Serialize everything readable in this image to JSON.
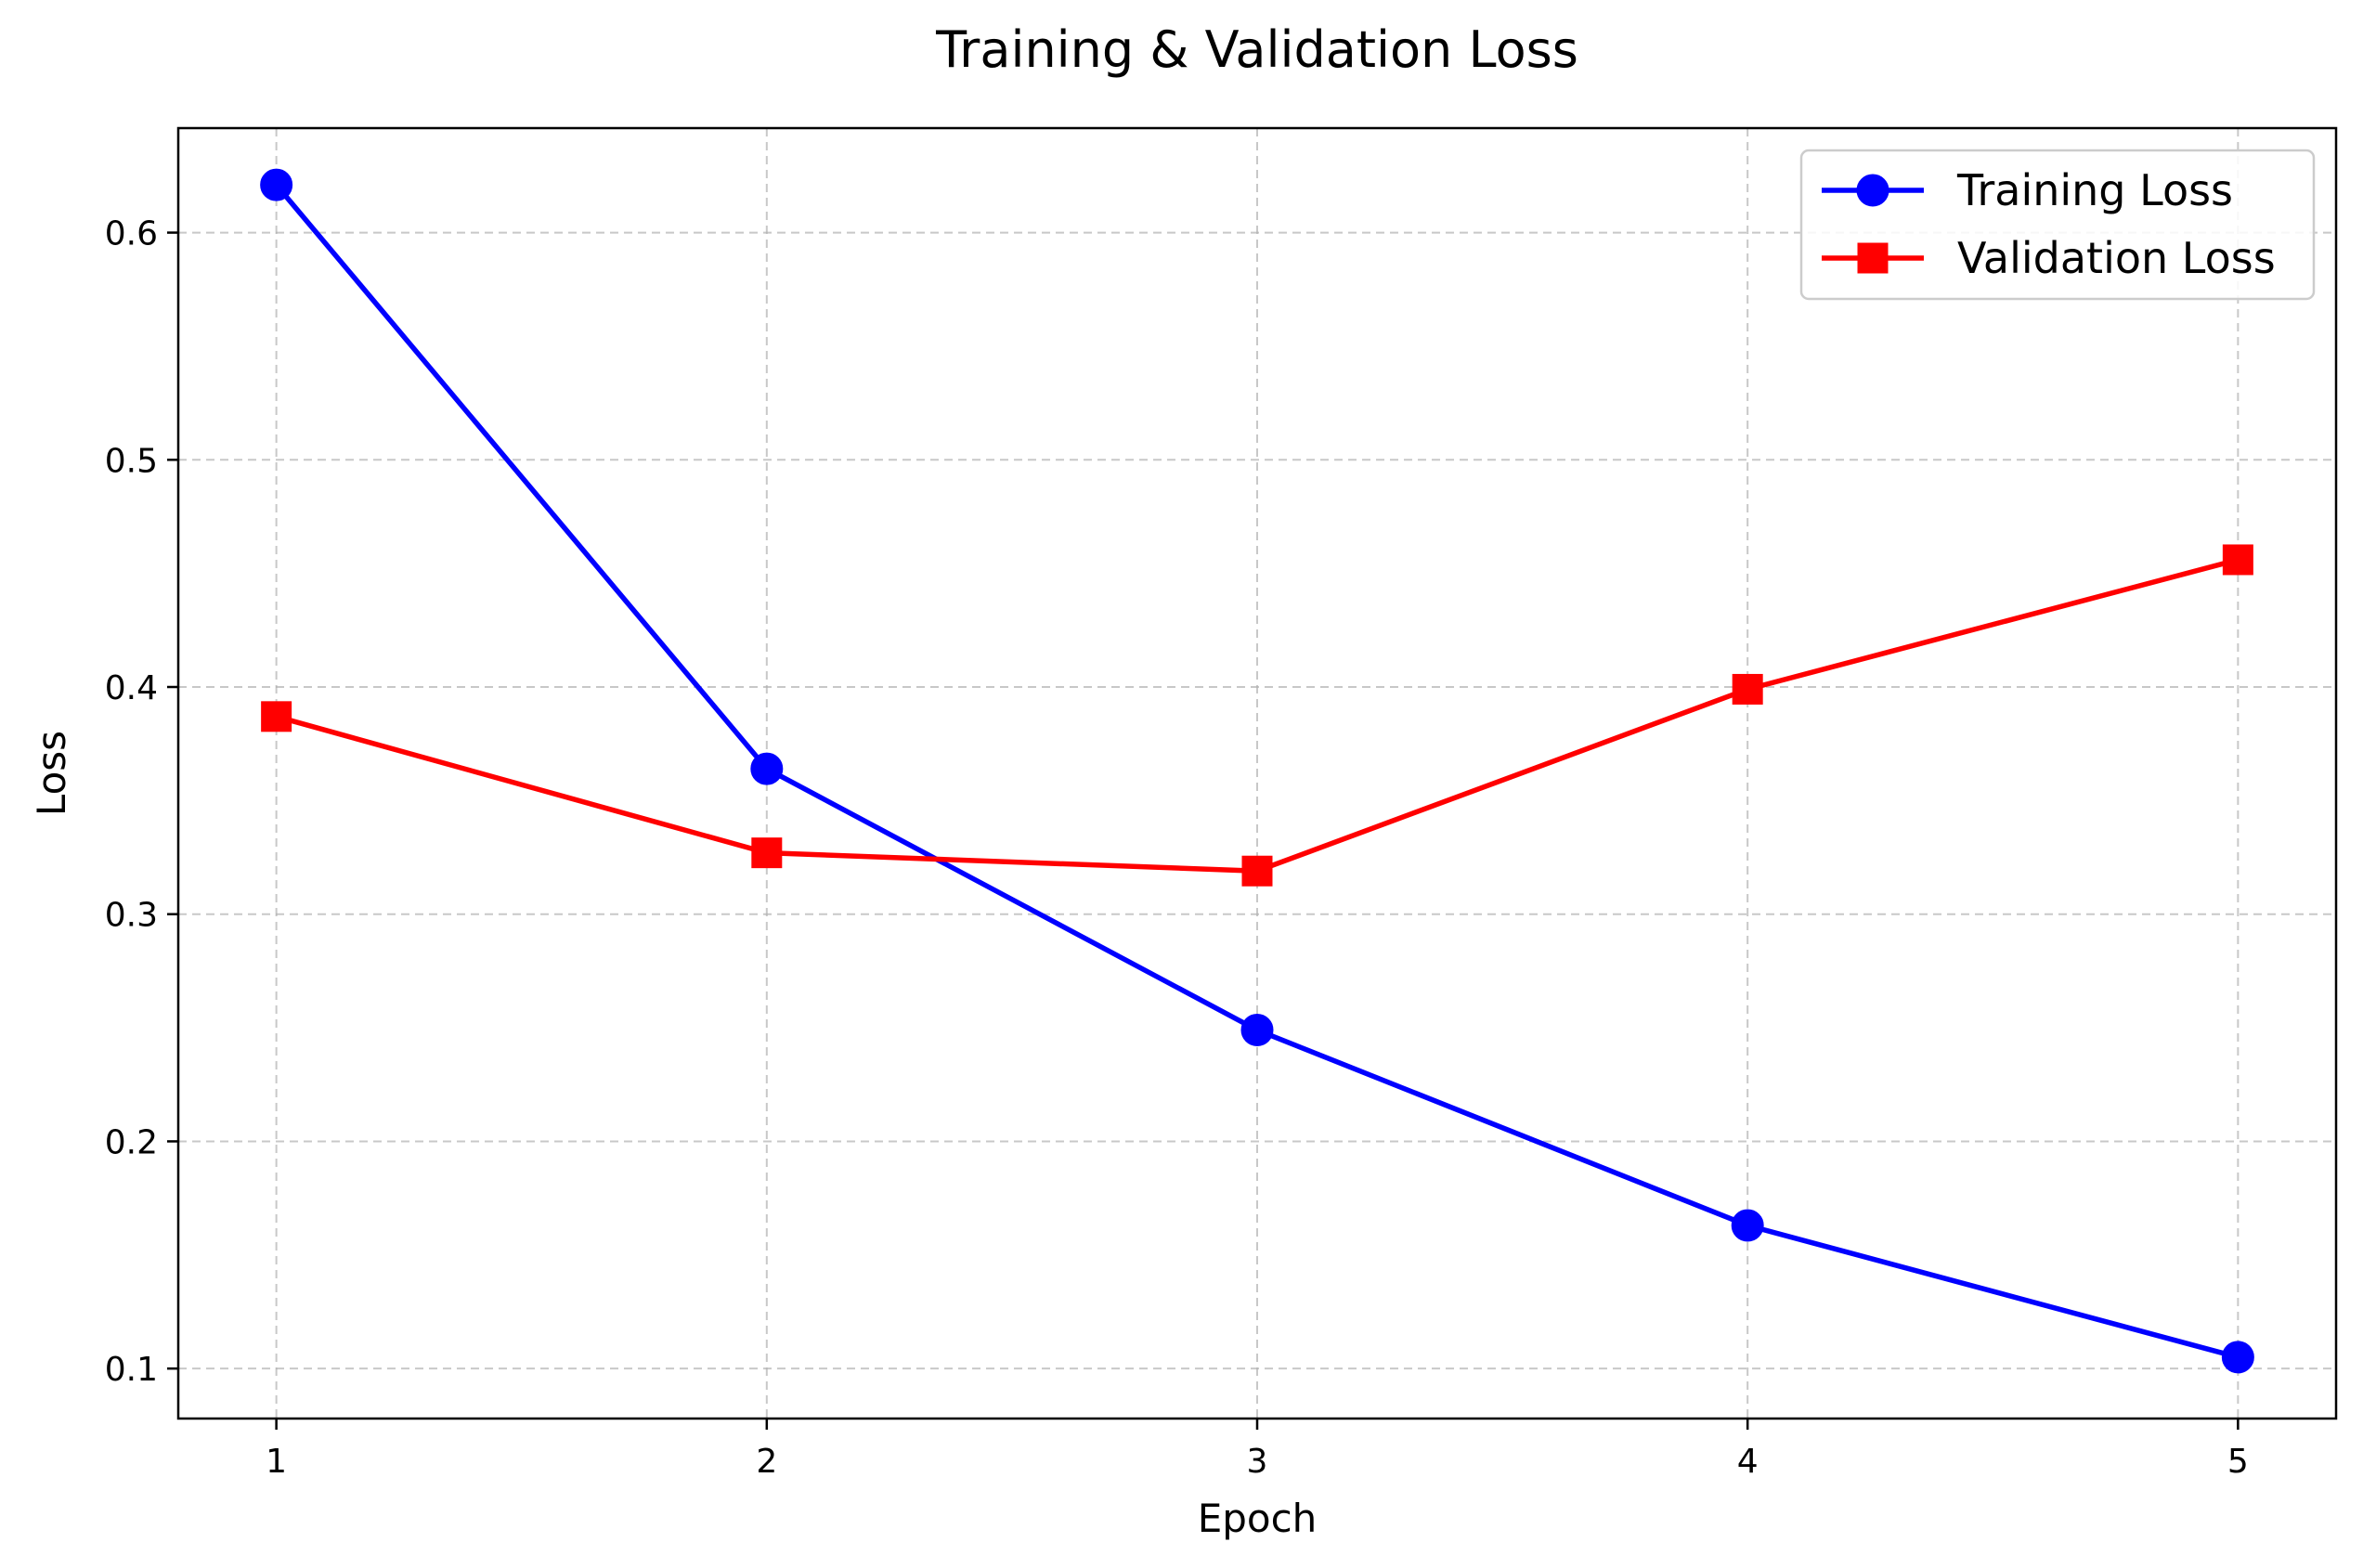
{
  "chart_data": {
    "type": "line",
    "title": "Training & Validation Loss",
    "xlabel": "Epoch",
    "ylabel": "Loss",
    "x": [
      1,
      2,
      3,
      4,
      5
    ],
    "xticks": [
      "1",
      "2",
      "3",
      "4",
      "5"
    ],
    "yticks": [
      "0.1",
      "0.2",
      "0.3",
      "0.4",
      "0.5",
      "0.6"
    ],
    "xlim": [
      0.8,
      5.2
    ],
    "ylim": [
      0.078,
      0.646
    ],
    "grid": true,
    "legend_position": "top-right",
    "series": [
      {
        "name": "Training Loss",
        "values": [
          0.621,
          0.364,
          0.249,
          0.163,
          0.105
        ],
        "color": "#0000ff",
        "marker": "circle"
      },
      {
        "name": "Validation Loss",
        "values": [
          0.387,
          0.327,
          0.319,
          0.399,
          0.456
        ],
        "color": "#ff0000",
        "marker": "square"
      }
    ]
  }
}
